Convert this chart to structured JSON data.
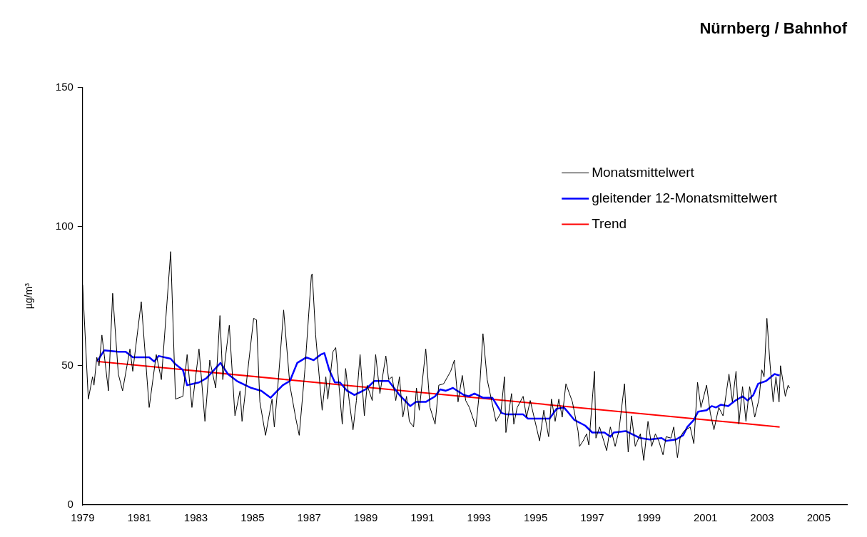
{
  "chart_data": {
    "type": "line",
    "title": "Nürnberg / Bahnhof",
    "ylabel": "µg/m³",
    "xlim": [
      1979,
      2006
    ],
    "xticks": [
      1979,
      1981,
      1983,
      1985,
      1987,
      1989,
      1991,
      1993,
      1995,
      1997,
      1999,
      2001,
      2003,
      2005
    ],
    "ylim": [
      0,
      150
    ],
    "yticks": [
      0,
      50,
      100,
      150
    ],
    "grid": false,
    "legend": "top right",
    "marker": "none",
    "line_style": "solid",
    "series": [
      {
        "name": "Monatsmittelwert",
        "color": "#000000",
        "x": [
          1979.0,
          1979.2,
          1979.35,
          1979.4,
          1979.5,
          1979.58,
          1979.68,
          1979.91,
          1980.06,
          1980.26,
          1980.41,
          1980.67,
          1980.77,
          1981.07,
          1981.35,
          1981.6,
          1981.78,
          1982.11,
          1982.28,
          1982.54,
          1982.69,
          1982.86,
          1983.11,
          1983.32,
          1983.49,
          1983.7,
          1983.85,
          1983.95,
          1984.18,
          1984.38,
          1984.56,
          1984.63,
          1985.04,
          1985.14,
          1985.26,
          1985.46,
          1985.69,
          1985.77,
          1985.89,
          1986.1,
          1986.32,
          1986.53,
          1986.65,
          1986.85,
          1987.08,
          1987.11,
          1987.23,
          1987.46,
          1987.59,
          1987.66,
          1987.84,
          1987.94,
          1988.17,
          1988.29,
          1988.42,
          1988.55,
          1988.67,
          1988.8,
          1988.95,
          1989.05,
          1989.23,
          1989.35,
          1989.5,
          1989.71,
          1989.81,
          1989.93,
          1990.06,
          1990.19,
          1990.31,
          1990.44,
          1990.54,
          1990.69,
          1990.79,
          1990.89,
          1991.12,
          1991.27,
          1991.45,
          1991.58,
          1991.75,
          1992.0,
          1992.13,
          1992.26,
          1992.41,
          1992.53,
          1992.66,
          1992.89,
          1993.01,
          1993.14,
          1993.29,
          1993.6,
          1993.77,
          1993.9,
          1993.95,
          1994.15,
          1994.23,
          1994.35,
          1994.56,
          1994.68,
          1994.81,
          1995.14,
          1995.29,
          1995.46,
          1995.56,
          1995.69,
          1995.82,
          1995.94,
          1996.07,
          1996.3,
          1996.5,
          1996.55,
          1996.68,
          1996.8,
          1996.88,
          1997.08,
          1997.13,
          1997.26,
          1997.51,
          1997.64,
          1997.81,
          1997.94,
          1998.14,
          1998.27,
          1998.39,
          1998.52,
          1998.7,
          1998.82,
          1998.97,
          1999.1,
          1999.23,
          1999.35,
          1999.5,
          1999.61,
          1999.78,
          1999.88,
          2000.01,
          2000.11,
          2000.24,
          2000.46,
          2000.59,
          2000.72,
          2000.84,
          2001.04,
          2001.17,
          2001.3,
          2001.47,
          2001.62,
          2001.83,
          2001.95,
          2002.08,
          2002.18,
          2002.31,
          2002.43,
          2002.56,
          2002.74,
          2002.89,
          2002.99,
          2003.07,
          2003.17,
          2003.27,
          2003.39,
          2003.49,
          2003.6,
          2003.65,
          2003.82,
          2003.92,
          2003.97
        ],
        "values": [
          79,
          38,
          46,
          43,
          53,
          50,
          61,
          41,
          76,
          47,
          41,
          56,
          48,
          73,
          35,
          54,
          45,
          91,
          38,
          39,
          54,
          35,
          56,
          30,
          52,
          42,
          68,
          45,
          64.5,
          32,
          41,
          30,
          67,
          66.5,
          37,
          25,
          38,
          28,
          42,
          70,
          43,
          31,
          25,
          48.5,
          82.5,
          83,
          61,
          34,
          46,
          38,
          55,
          56.5,
          29,
          49,
          37,
          27,
          37.5,
          54,
          32,
          43,
          37.5,
          54,
          40,
          53.5,
          45,
          46,
          37.5,
          46,
          31.5,
          39,
          30,
          28,
          42,
          34,
          56,
          35,
          29,
          43,
          43.5,
          48,
          52,
          37,
          46.5,
          37.5,
          35,
          28,
          40,
          61.5,
          45,
          30,
          33,
          46,
          26,
          40,
          29,
          35,
          39,
          31.5,
          37.5,
          23,
          34,
          24.5,
          38,
          30,
          38,
          31.5,
          43.5,
          37,
          26.5,
          21,
          23,
          25.5,
          21.5,
          48,
          24,
          28,
          19.5,
          28,
          21,
          26.5,
          43.5,
          19,
          32,
          21,
          25.5,
          16,
          30,
          21,
          25.5,
          23,
          18,
          24.5,
          24,
          28,
          17,
          24.5,
          26.5,
          28,
          22,
          44,
          35,
          43,
          33,
          27,
          35,
          32,
          47,
          37,
          48,
          29,
          42.5,
          30,
          42.5,
          31.5,
          38,
          48.5,
          46,
          67,
          52,
          37,
          46,
          37,
          50,
          39,
          43,
          42
        ]
      },
      {
        "name": "gleitender 12-Monatsmittelwert",
        "color": "#0000ff",
        "x": [
          1979.51,
          1979.76,
          1980.26,
          1980.52,
          1980.77,
          1981.1,
          1981.35,
          1981.53,
          1981.68,
          1982.11,
          1982.28,
          1982.54,
          1982.69,
          1983.11,
          1983.37,
          1983.87,
          1984.13,
          1984.45,
          1984.96,
          1985.31,
          1985.64,
          1986.07,
          1986.32,
          1986.58,
          1986.9,
          1987.16,
          1987.41,
          1987.54,
          1987.71,
          1987.91,
          1988.09,
          1988.34,
          1988.6,
          1989.0,
          1989.3,
          1989.81,
          1990.19,
          1990.57,
          1990.77,
          1991.12,
          1991.45,
          1991.63,
          1991.83,
          1992.08,
          1992.46,
          1992.64,
          1992.84,
          1993.14,
          1993.47,
          1993.8,
          1993.97,
          1994.56,
          1994.73,
          1995.49,
          1995.74,
          1996.0,
          1996.17,
          1996.37,
          1996.75,
          1997.0,
          1997.43,
          1997.64,
          1997.76,
          1998.19,
          1998.7,
          1999.03,
          1999.45,
          1999.61,
          1999.96,
          2000.21,
          2000.36,
          2000.59,
          2000.74,
          2001.04,
          2001.22,
          2001.37,
          2001.55,
          2001.8,
          2002.06,
          2002.31,
          2002.49,
          2002.69,
          2002.86,
          2003.14,
          2003.44,
          2003.62
        ],
        "values": [
          51.5,
          55.5,
          55,
          55,
          53,
          53,
          53,
          51.5,
          53.5,
          52.5,
          50.5,
          48.5,
          43,
          44,
          45.5,
          51,
          47,
          44.5,
          42,
          41,
          38.5,
          43,
          44.5,
          51,
          53,
          52,
          54,
          54.5,
          48.5,
          44,
          44,
          41,
          39.5,
          41.5,
          44.5,
          44.5,
          39.5,
          35.5,
          37,
          37,
          39,
          41.5,
          41,
          42,
          39.5,
          39,
          40,
          38.5,
          38.5,
          33,
          32.5,
          32.5,
          31,
          31,
          34.5,
          35,
          33,
          30.5,
          28.5,
          26,
          26,
          24.5,
          26,
          26.5,
          24,
          23.5,
          24,
          23,
          23.5,
          25,
          28,
          30.5,
          33.5,
          34,
          35.5,
          35,
          36,
          35.5,
          37.5,
          39,
          37.5,
          39.5,
          43.5,
          44.5,
          47,
          46.5
        ]
      },
      {
        "name": "Trend",
        "color": "#ff0000",
        "x": [
          1979.55,
          2003.62
        ],
        "values": [
          51.5,
          28
        ]
      }
    ]
  }
}
